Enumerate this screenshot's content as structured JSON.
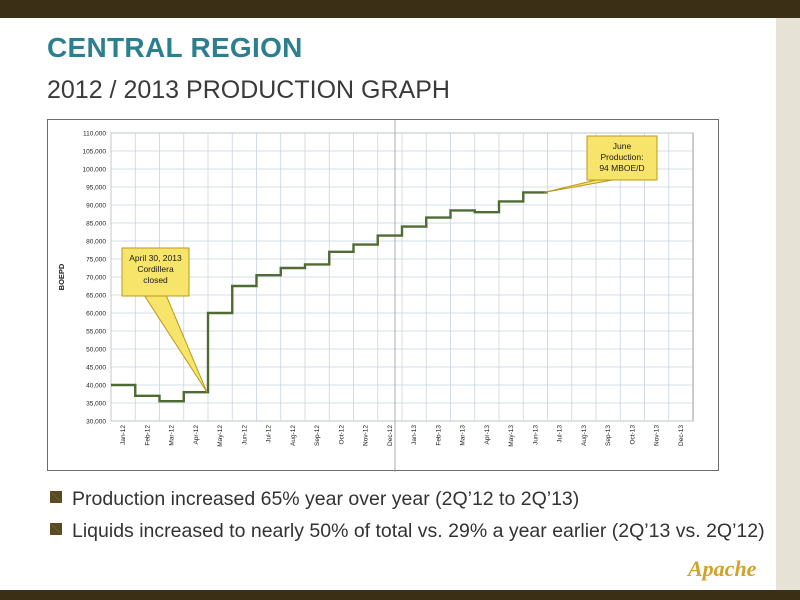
{
  "slide": {
    "title": "CENTRAL REGION",
    "subtitle": "2012 / 2013 PRODUCTION GRAPH",
    "bullets": [
      "Production increased 65% year over year (2Q’12 to 2Q’13)",
      "Liquids increased to nearly 50% of total vs. 29% a year earlier (2Q’13 vs. 2Q’12)"
    ],
    "logo_text": "Apache"
  },
  "colors": {
    "title": "#2b7f8f",
    "line": "#4e6b33",
    "callout_fill": "#f7e46a",
    "callout_border": "#b99a1e",
    "bars": "#3b2f16"
  },
  "chart_data": {
    "type": "line",
    "step": true,
    "title": "",
    "xlabel": "",
    "ylabel": "BOEPD",
    "ylim": [
      30000,
      110000
    ],
    "y_ticks": [
      "30,000",
      "35,000",
      "40,000",
      "45,000",
      "50,000",
      "55,000",
      "60,000",
      "65,000",
      "70,000",
      "75,000",
      "80,000",
      "85,000",
      "90,000",
      "95,000",
      "100,000",
      "105,000",
      "110,000"
    ],
    "x_ticks": [
      "Jan-12",
      "Feb-12",
      "Mar-12",
      "Apr-12",
      "May-12",
      "Jun-12",
      "Jul-12",
      "Aug-12",
      "Sep-12",
      "Oct-12",
      "Nov-12",
      "Dec-12",
      "Jan-13",
      "Feb-13",
      "Mar-13",
      "Apr-13",
      "May-13",
      "Jun-13",
      "Jul-13",
      "Aug-13",
      "Sep-13",
      "Oct-13",
      "Nov-13",
      "Dec-13"
    ],
    "grid": true,
    "series": [
      {
        "values": [
          40000,
          37000,
          35500,
          38000,
          60000,
          67500,
          70500,
          72500,
          73500,
          77000,
          79000,
          81500,
          84000,
          86500,
          88500,
          88000,
          91000,
          93500
        ]
      }
    ],
    "annotations": [
      {
        "text": "April 30, 2013 Cordillera closed",
        "lines": [
          "April 30, 2013",
          "Cordillera",
          "closed"
        ],
        "x": "May-12",
        "y": 38000
      },
      {
        "text": "June Production: 94 MBOE/D",
        "lines": [
          "June",
          "Production:",
          "94 MBOE/D"
        ],
        "x": "Jul-13",
        "y": 93500
      }
    ]
  }
}
